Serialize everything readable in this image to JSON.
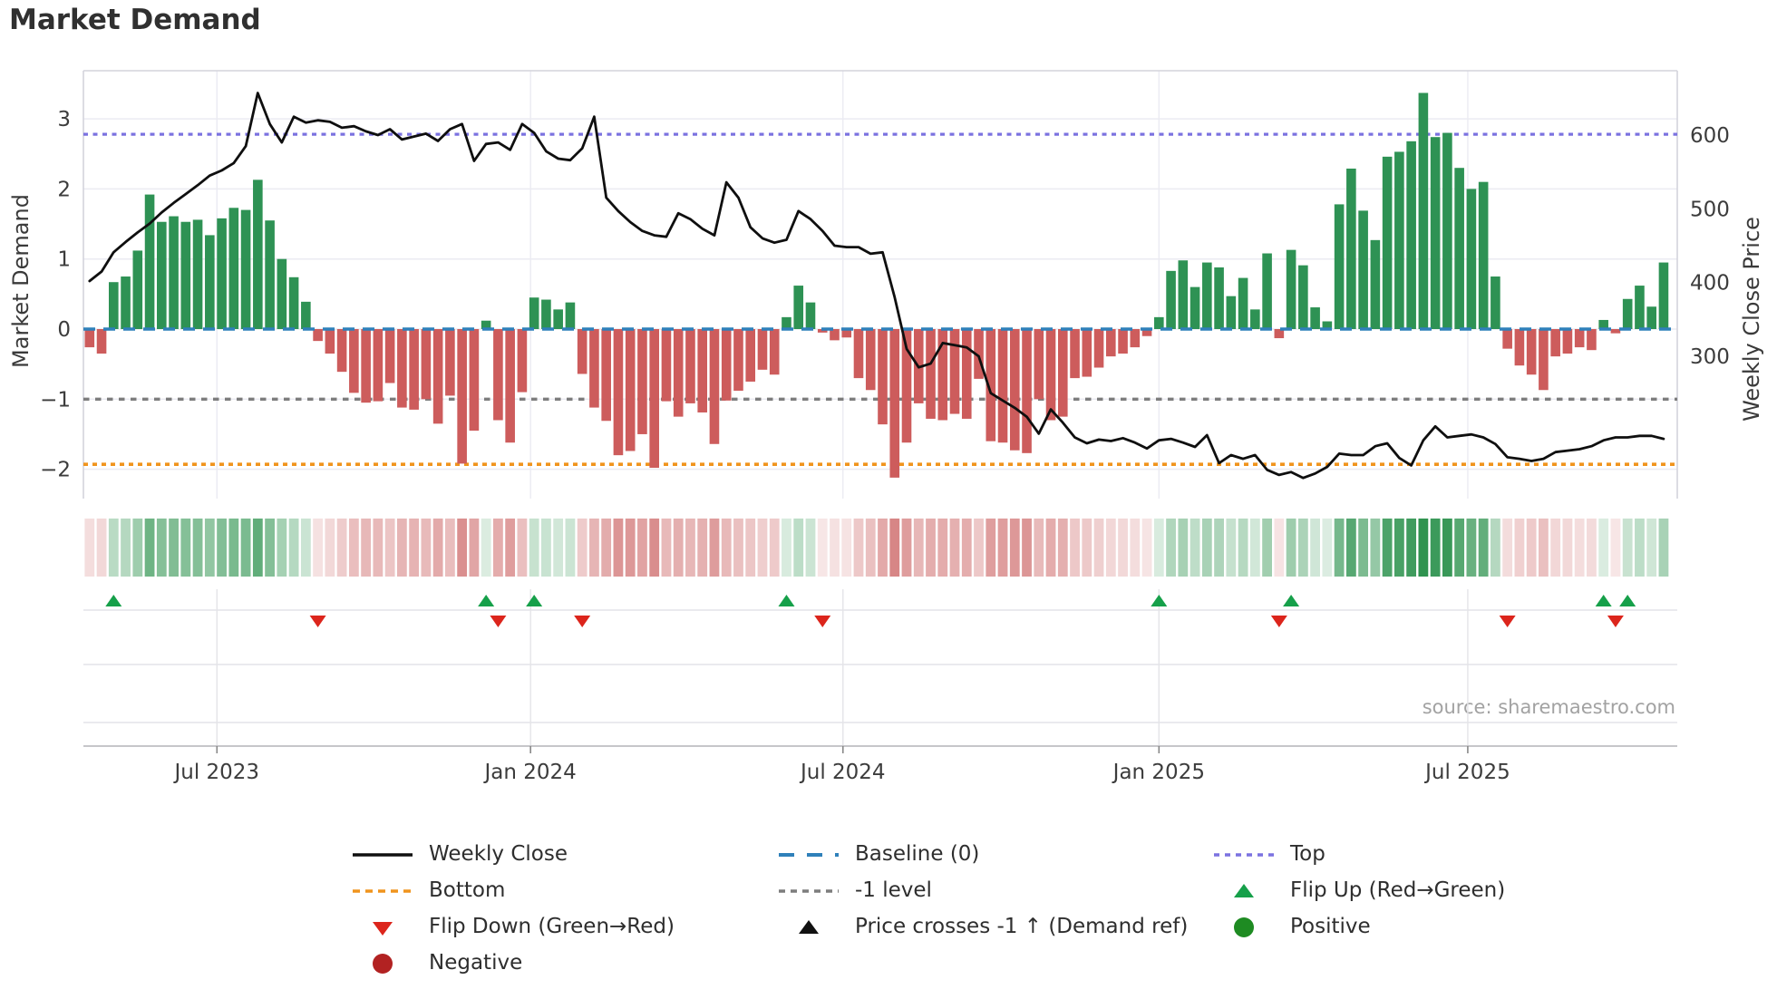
{
  "title": "Market Demand",
  "left_axis_label": "Market Demand",
  "right_axis_label": "Weekly Close Price",
  "source": "source: sharemaestro.com",
  "colors": {
    "bar_green": "#2e9254",
    "bar_red": "#cd5c5c",
    "flip_up": "#16a04a",
    "flip_down": "#dc251c",
    "positive_dot": "#1e8b22",
    "negative_dot": "#b22222",
    "top_line": "#7b72e0",
    "bottom_line": "#f0941d",
    "baseline": "#2f80ba",
    "minus1_line": "#7d7d7d",
    "price_line": "#0f0f0f",
    "heat_green": "#1f8b42",
    "heat_red": "#c65353",
    "grid": "#ebebf2",
    "spine": "#d4d4dc",
    "panel_grid": "#e4e4e8",
    "panel_spine": "#c6c6ca",
    "tick_text": "#3c3c3c"
  },
  "chart_data": {
    "type": "bar+line+heatmap",
    "x_unit": "week",
    "title": "Market Demand",
    "demand_axis_ticks": [
      {
        "v": 3,
        "label": "3"
      },
      {
        "v": 2,
        "label": "2"
      },
      {
        "v": 1,
        "label": "1"
      },
      {
        "v": 0,
        "label": "0"
      },
      {
        "v": -1,
        "label": "−1"
      },
      {
        "v": -2,
        "label": "−2"
      }
    ],
    "price_axis_ticks": [
      {
        "p": 600,
        "label": "600"
      },
      {
        "p": 500,
        "label": "500"
      },
      {
        "p": 400,
        "label": "400"
      },
      {
        "p": 300,
        "label": "300"
      }
    ],
    "x_ticks": [
      {
        "label": "Jul 2023",
        "week": 10.6
      },
      {
        "label": "Jan 2024",
        "week": 36.7
      },
      {
        "label": "Jul 2024",
        "week": 62.7
      },
      {
        "label": "Jan 2025",
        "week": 89.0
      },
      {
        "label": "Jul 2025",
        "week": 114.7
      }
    ],
    "ref_lines": {
      "top": {
        "label": "Top",
        "value": 2.78
      },
      "baseline": {
        "label": "Baseline (0)",
        "value": 0
      },
      "minus1": {
        "label": "-1 level",
        "value": -1
      },
      "bottom": {
        "label": "Bottom",
        "value": -1.93
      }
    },
    "demand": [
      -0.26,
      -0.35,
      0.67,
      0.75,
      1.12,
      1.92,
      1.53,
      1.61,
      1.53,
      1.56,
      1.34,
      1.58,
      1.73,
      1.7,
      2.13,
      1.55,
      1.0,
      0.74,
      0.39,
      -0.17,
      -0.35,
      -0.61,
      -0.91,
      -1.05,
      -1.03,
      -0.77,
      -1.12,
      -1.15,
      -1.0,
      -1.35,
      -0.95,
      -1.92,
      -1.45,
      0.12,
      -1.3,
      -1.62,
      -0.9,
      0.45,
      0.42,
      0.28,
      0.38,
      -0.64,
      -1.12,
      -1.31,
      -1.8,
      -1.74,
      -1.5,
      -1.98,
      -1.03,
      -1.25,
      -1.06,
      -1.19,
      -1.64,
      -1.02,
      -0.88,
      -0.75,
      -0.58,
      -0.65,
      0.17,
      0.62,
      0.38,
      -0.05,
      -0.16,
      -0.12,
      -0.7,
      -0.87,
      -1.36,
      -2.12,
      -1.62,
      -1.06,
      -1.28,
      -1.3,
      -1.21,
      -1.28,
      -0.71,
      -1.6,
      -1.62,
      -1.73,
      -1.77,
      -1.0,
      -1.3,
      -1.25,
      -0.7,
      -0.68,
      -0.55,
      -0.39,
      -0.35,
      -0.26,
      -0.1,
      0.17,
      0.83,
      0.98,
      0.6,
      0.95,
      0.88,
      0.47,
      0.73,
      0.28,
      1.08,
      -0.13,
      1.13,
      0.91,
      0.31,
      0.11,
      1.78,
      2.29,
      1.69,
      1.27,
      2.46,
      2.53,
      2.68,
      3.37,
      2.74,
      2.8,
      2.3,
      2.0,
      2.1,
      0.75,
      -0.28,
      -0.52,
      -0.65,
      -0.87,
      -0.39,
      -0.35,
      -0.26,
      -0.3,
      0.13,
      -0.06,
      0.43,
      0.62,
      0.32,
      0.95
    ],
    "price": [
      402,
      415,
      441,
      455,
      468,
      480,
      495,
      508,
      520,
      532,
      545,
      552,
      562,
      585,
      657,
      615,
      590,
      625,
      617,
      620,
      618,
      610,
      612,
      605,
      600,
      608,
      594,
      598,
      602,
      592,
      608,
      615,
      565,
      588,
      590,
      580,
      615,
      603,
      578,
      568,
      566,
      582,
      625,
      515,
      497,
      482,
      470,
      464,
      462,
      494,
      486,
      473,
      464,
      536,
      515,
      475,
      460,
      454,
      458,
      497,
      486,
      470,
      450,
      448,
      448,
      439,
      441,
      380,
      310,
      285,
      290,
      318,
      315,
      312,
      300,
      250,
      240,
      230,
      218,
      195,
      228,
      210,
      190,
      182,
      187,
      185,
      189,
      183,
      175,
      186,
      188,
      183,
      177,
      193,
      155,
      166,
      161,
      166,
      146,
      139,
      143,
      135,
      141,
      150,
      168,
      166,
      166,
      178,
      182,
      162,
      152,
      186,
      205,
      190,
      192,
      194,
      190,
      181,
      163,
      161,
      158,
      161,
      170,
      172,
      174,
      178,
      186,
      190,
      190,
      192,
      192,
      188
    ]
  },
  "legend": {
    "columns": [
      {
        "items": [
          {
            "swatch": "line-solid",
            "label": "Weekly Close"
          },
          {
            "swatch": "dash-orange",
            "label": "Bottom"
          },
          {
            "swatch": "tri-down-red",
            "label": "Flip Down (Green→Red)"
          },
          {
            "swatch": "circle-darkred",
            "label": "Negative"
          }
        ]
      },
      {
        "items": [
          {
            "swatch": "dash-blue-long",
            "label": "Baseline (0)"
          },
          {
            "swatch": "dash-gray",
            "label": "-1 level"
          },
          {
            "swatch": "tri-up-black",
            "label": "Price crosses -1 ↑ (Demand ref)"
          }
        ]
      },
      {
        "items": [
          {
            "swatch": "dot-purple",
            "label": "Top"
          },
          {
            "swatch": "tri-up-green",
            "label": "Flip Up (Red→Green)"
          },
          {
            "swatch": "circle-green",
            "label": "Positive"
          }
        ]
      }
    ]
  }
}
